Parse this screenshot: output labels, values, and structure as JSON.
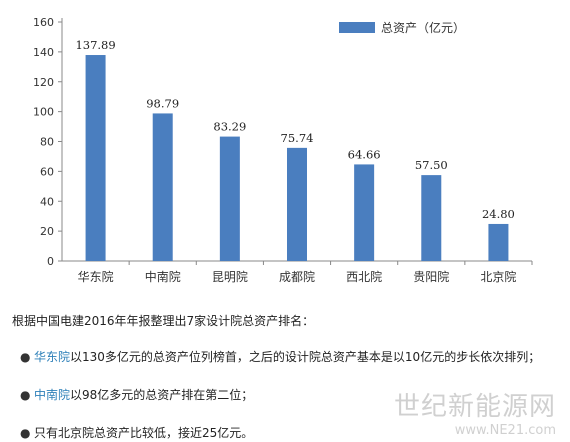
{
  "chart_data": {
    "type": "bar",
    "categories": [
      "华东院",
      "中南院",
      "昆明院",
      "成都院",
      "西北院",
      "贵阳院",
      "北京院"
    ],
    "series": [
      {
        "name": "总资产（亿元）",
        "values": [
          137.89,
          98.79,
          83.29,
          75.74,
          64.66,
          57.5,
          24.8
        ],
        "value_labels": [
          "137.89",
          "98.79",
          "83.29",
          "75.74",
          "64.66",
          "57.50",
          "24.80"
        ]
      }
    ],
    "ylim": [
      0,
      160
    ],
    "yticks": [
      0,
      20,
      40,
      60,
      80,
      100,
      120,
      140,
      160
    ],
    "legend": "top-right",
    "grid": false,
    "bar_color": "#4a7ebf"
  },
  "text": {
    "intro": "根据中国电建2016年年报整理出7家设计院总资产排名：",
    "bullets": [
      {
        "highlight": "华东院",
        "rest": "以130多亿元的总资产位列榜首，之后的设计院总资产基本是以10亿元的步长依次排列；"
      },
      {
        "highlight": "中南院",
        "rest": "以98亿多元的总资产排在第二位；"
      },
      {
        "highlight": "",
        "rest": "只有北京院总资产比较低，接近25亿元。"
      }
    ],
    "bullet_symbol": "●"
  },
  "watermark": {
    "line1": "世纪新能源网",
    "line2": "www.NE21.com"
  }
}
